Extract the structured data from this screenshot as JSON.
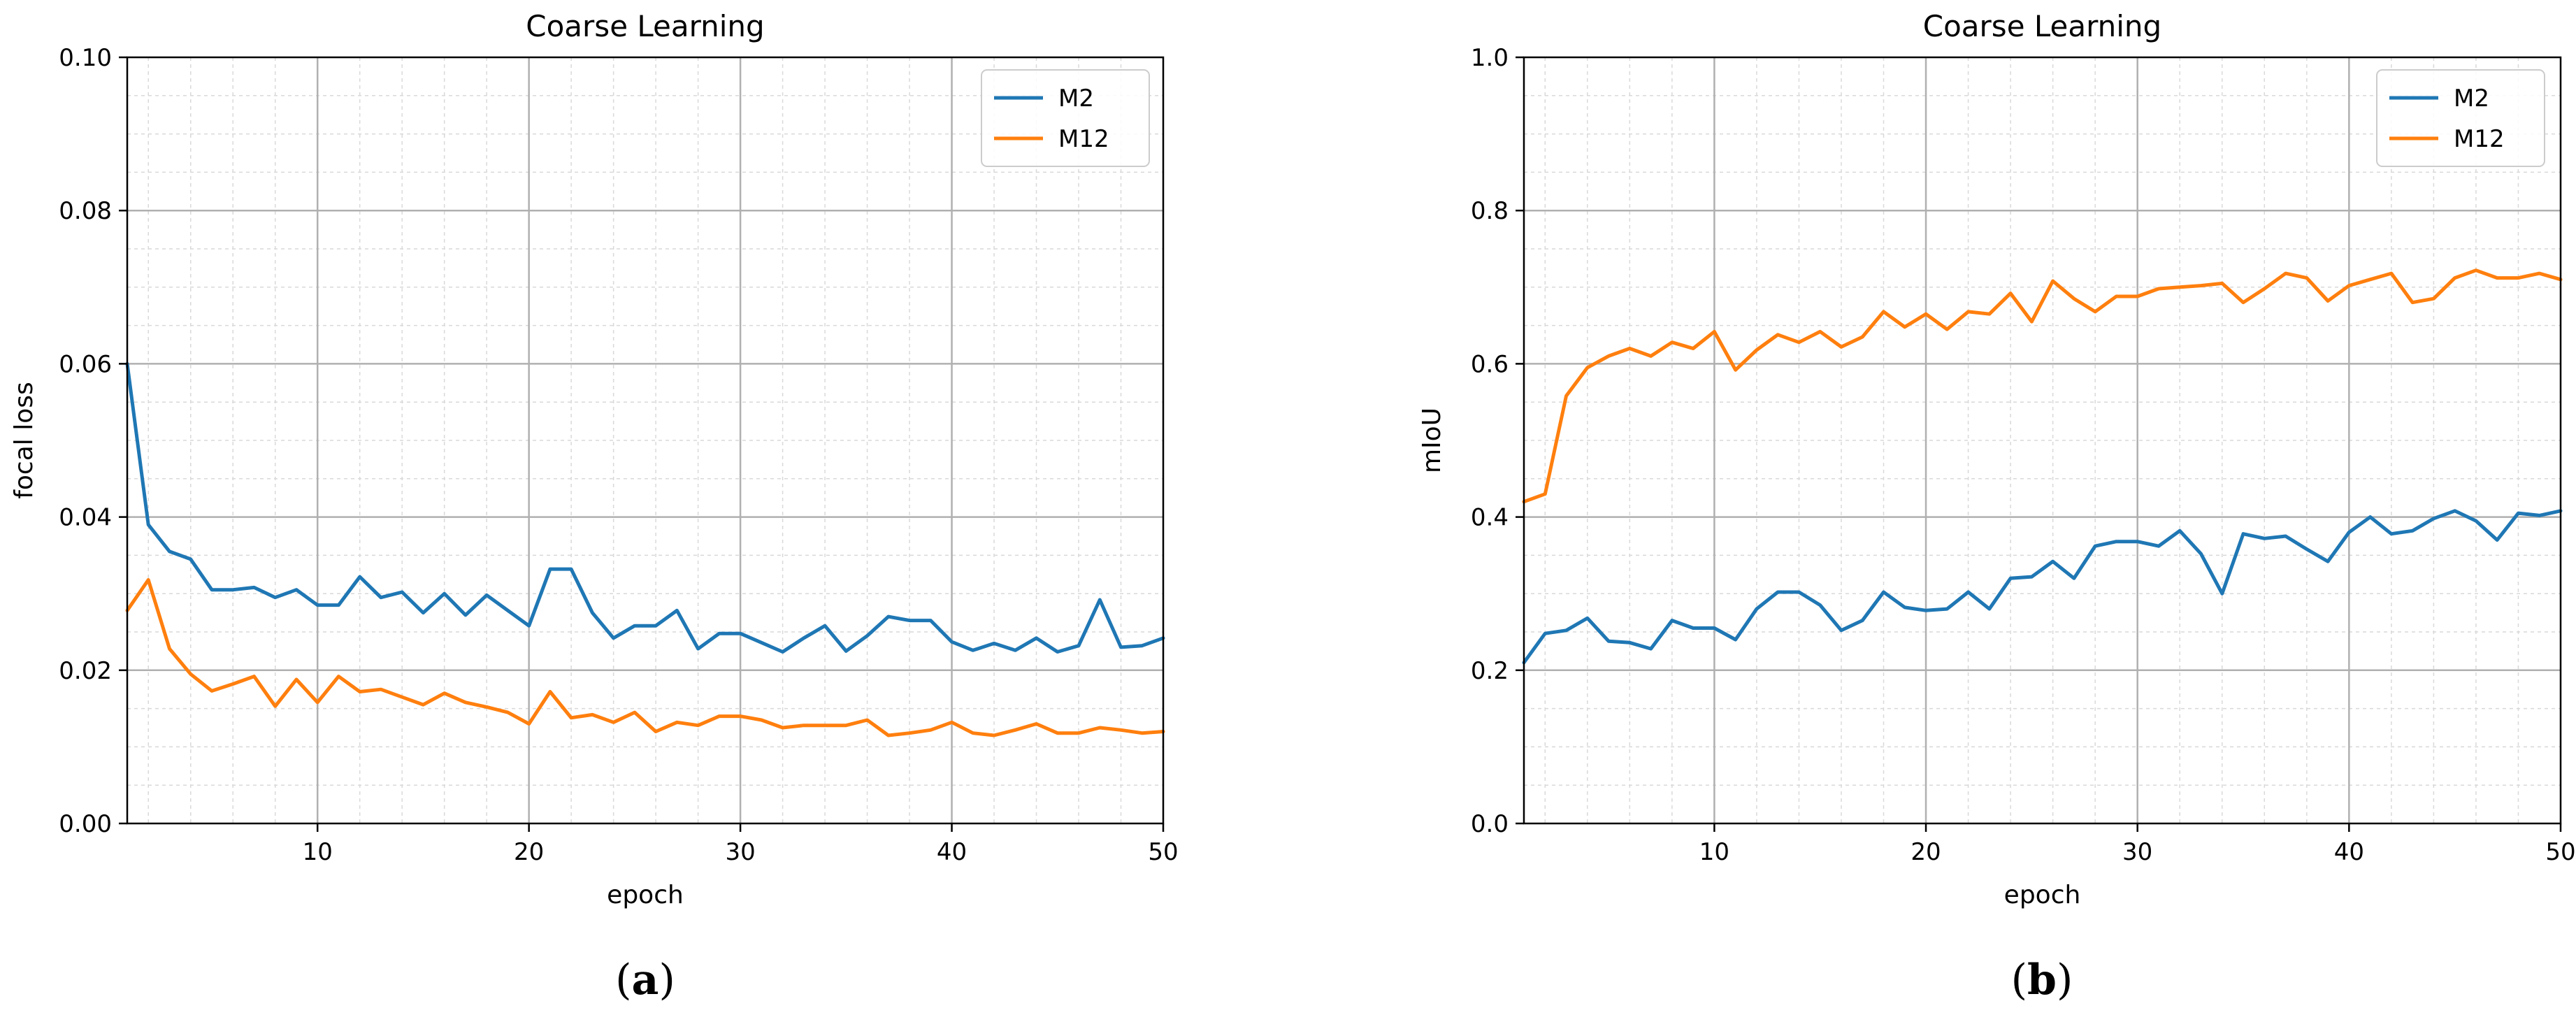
{
  "chart_data": [
    {
      "type": "line",
      "title": "Coarse Learning",
      "xlabel": "epoch",
      "ylabel": "focal loss",
      "caption": "a",
      "xlim": [
        1,
        50
      ],
      "ylim": [
        0.0,
        0.1
      ],
      "xticks": [
        10,
        20,
        30,
        40,
        50
      ],
      "yticks": [
        0.0,
        0.02,
        0.04,
        0.06,
        0.08,
        0.1
      ],
      "ytick_labels": [
        "0.00",
        "0.02",
        "0.04",
        "0.06",
        "0.08",
        "0.10"
      ],
      "legend": "top-right",
      "grid": true,
      "x": [
        1,
        2,
        3,
        4,
        5,
        6,
        7,
        8,
        9,
        10,
        11,
        12,
        13,
        14,
        15,
        16,
        17,
        18,
        19,
        20,
        21,
        22,
        23,
        24,
        25,
        26,
        27,
        28,
        29,
        30,
        31,
        32,
        33,
        34,
        35,
        36,
        37,
        38,
        39,
        40,
        41,
        42,
        43,
        44,
        45,
        46,
        47,
        48,
        49,
        50
      ],
      "series": [
        {
          "name": "M2",
          "color": "#1f77b4",
          "values": [
            0.06,
            0.039,
            0.0355,
            0.0345,
            0.0305,
            0.0305,
            0.0308,
            0.0295,
            0.0305,
            0.0285,
            0.0285,
            0.0322,
            0.0295,
            0.0302,
            0.0275,
            0.03,
            0.0272,
            0.0298,
            0.0278,
            0.0258,
            0.0332,
            0.0332,
            0.0275,
            0.0242,
            0.0258,
            0.0258,
            0.0278,
            0.0228,
            0.0248,
            0.0248,
            0.0236,
            0.0224,
            0.0242,
            0.0258,
            0.0225,
            0.0245,
            0.027,
            0.0265,
            0.0265,
            0.0237,
            0.0226,
            0.0235,
            0.0226,
            0.0242,
            0.0224,
            0.0232,
            0.0292,
            0.023,
            0.0232,
            0.0242
          ]
        },
        {
          "name": "M12",
          "color": "#ff7f0e",
          "values": [
            0.0278,
            0.0318,
            0.0228,
            0.0195,
            0.0173,
            0.0182,
            0.0192,
            0.0153,
            0.0188,
            0.0158,
            0.0192,
            0.0172,
            0.0175,
            0.0165,
            0.0155,
            0.017,
            0.0158,
            0.0152,
            0.0145,
            0.013,
            0.0172,
            0.0138,
            0.0142,
            0.0132,
            0.0145,
            0.012,
            0.0132,
            0.0128,
            0.014,
            0.014,
            0.0135,
            0.0125,
            0.0128,
            0.0128,
            0.0128,
            0.0135,
            0.0115,
            0.0118,
            0.0122,
            0.0132,
            0.0118,
            0.0115,
            0.0122,
            0.013,
            0.0118,
            0.0118,
            0.0125,
            0.0122,
            0.0118,
            0.012
          ]
        }
      ]
    },
    {
      "type": "line",
      "title": "Coarse Learning",
      "xlabel": "epoch",
      "ylabel": "mIoU",
      "caption": "b",
      "xlim": [
        1,
        50
      ],
      "ylim": [
        0.0,
        1.0
      ],
      "xticks": [
        10,
        20,
        30,
        40,
        50
      ],
      "yticks": [
        0.0,
        0.2,
        0.4,
        0.6,
        0.8,
        1.0
      ],
      "ytick_labels": [
        "0.0",
        "0.2",
        "0.4",
        "0.6",
        "0.8",
        "1.0"
      ],
      "legend": "top-right",
      "grid": true,
      "x": [
        1,
        2,
        3,
        4,
        5,
        6,
        7,
        8,
        9,
        10,
        11,
        12,
        13,
        14,
        15,
        16,
        17,
        18,
        19,
        20,
        21,
        22,
        23,
        24,
        25,
        26,
        27,
        28,
        29,
        30,
        31,
        32,
        33,
        34,
        35,
        36,
        37,
        38,
        39,
        40,
        41,
        42,
        43,
        44,
        45,
        46,
        47,
        48,
        49,
        50
      ],
      "series": [
        {
          "name": "M2",
          "color": "#1f77b4",
          "values": [
            0.21,
            0.248,
            0.252,
            0.268,
            0.238,
            0.236,
            0.228,
            0.265,
            0.255,
            0.255,
            0.24,
            0.28,
            0.302,
            0.302,
            0.285,
            0.252,
            0.265,
            0.302,
            0.282,
            0.278,
            0.28,
            0.302,
            0.28,
            0.32,
            0.322,
            0.342,
            0.32,
            0.362,
            0.368,
            0.368,
            0.362,
            0.382,
            0.352,
            0.3,
            0.378,
            0.372,
            0.375,
            0.358,
            0.342,
            0.38,
            0.4,
            0.378,
            0.382,
            0.398,
            0.408,
            0.395,
            0.37,
            0.405,
            0.402,
            0.408
          ]
        },
        {
          "name": "M12",
          "color": "#ff7f0e",
          "values": [
            0.42,
            0.43,
            0.558,
            0.595,
            0.61,
            0.62,
            0.61,
            0.628,
            0.62,
            0.642,
            0.592,
            0.618,
            0.638,
            0.628,
            0.642,
            0.622,
            0.635,
            0.668,
            0.648,
            0.665,
            0.645,
            0.668,
            0.665,
            0.692,
            0.655,
            0.708,
            0.685,
            0.668,
            0.688,
            0.688,
            0.698,
            0.7,
            0.702,
            0.705,
            0.68,
            0.698,
            0.718,
            0.712,
            0.682,
            0.702,
            0.71,
            0.718,
            0.68,
            0.685,
            0.712,
            0.722,
            0.712,
            0.712,
            0.718,
            0.71
          ]
        }
      ]
    }
  ]
}
